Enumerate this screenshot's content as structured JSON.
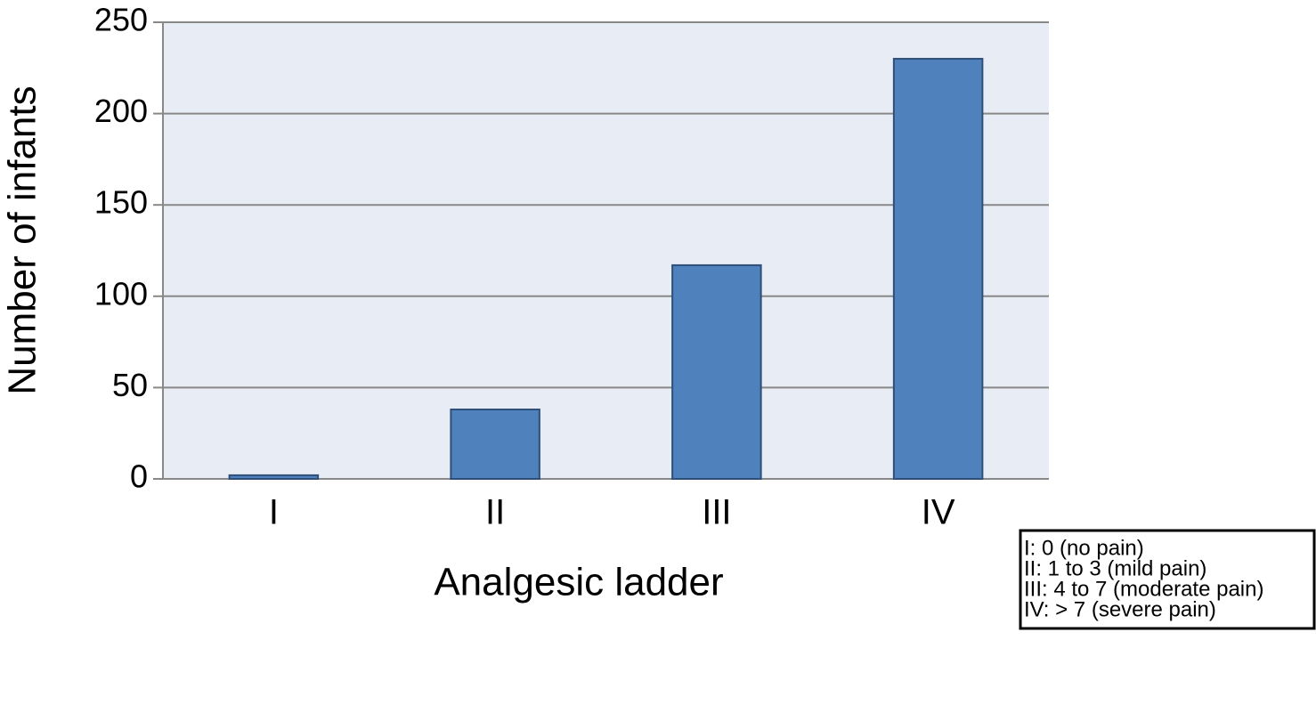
{
  "chart_data": {
    "type": "bar",
    "xlabel": "Analgesic ladder",
    "ylabel": "Number of infants",
    "categories": [
      "I",
      "II",
      "III",
      "IV"
    ],
    "values": [
      2,
      38,
      117,
      230
    ],
    "color": "#4f81bd",
    "ylim": [
      0,
      250
    ],
    "yticks": [
      0,
      50,
      100,
      150,
      200,
      250
    ],
    "grid": true,
    "annotations": [
      "I: 0 (no pain)",
      "II: 1 to 3 (mild pain)",
      "III: 4 to 7 (moderate pain)",
      "IV: > 7 (severe pain)"
    ]
  }
}
